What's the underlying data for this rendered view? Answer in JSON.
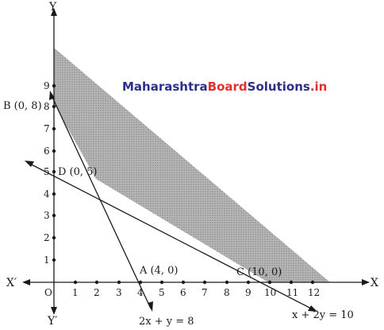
{
  "watermark": {
    "part1": "Maharashtra",
    "part2": "Board",
    "part3": "Solutions",
    "part4": ".in",
    "color1": "#2c2f8a",
    "color2": "#e0312c"
  },
  "axes": {
    "x_pos": "X",
    "x_neg": "X′",
    "y_pos": "Y",
    "y_neg": "Y′",
    "origin": "O",
    "x_ticks": [
      "1",
      "2",
      "3",
      "4",
      "5",
      "6",
      "7",
      "8",
      "9",
      "10",
      "11",
      "12"
    ],
    "y_ticks": [
      "1",
      "2",
      "3",
      "4",
      "5",
      "6",
      "7",
      "8",
      "9"
    ]
  },
  "points": {
    "A": "A (4, 0)",
    "B": "B (0, 8)",
    "C": "C (10, 0)",
    "D": "D (0, 5)"
  },
  "equations": {
    "line1": "2x + y = 8",
    "line2": "x + 2y = 10"
  },
  "colors": {
    "region_fill": "#a9a9a9",
    "ink": "#1a1a1a"
  }
}
